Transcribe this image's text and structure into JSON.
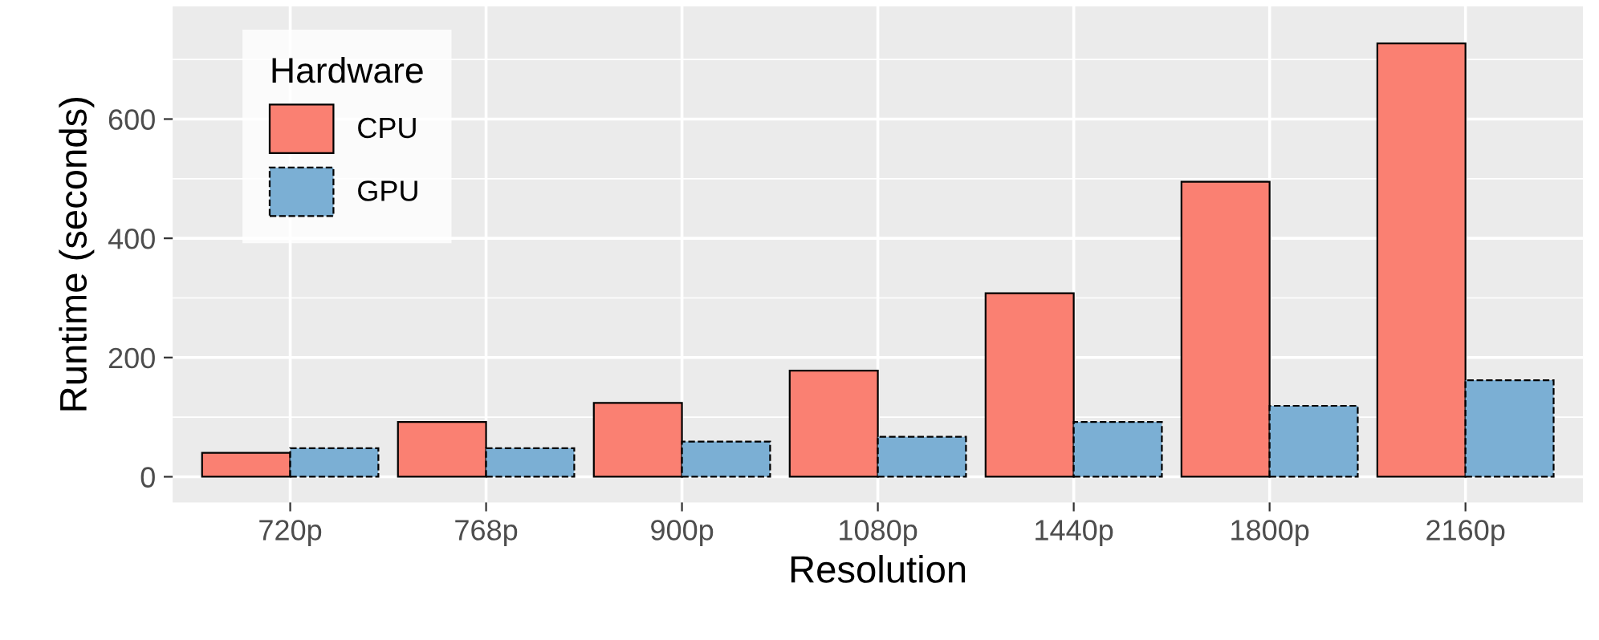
{
  "chart_data": {
    "type": "bar",
    "xlabel": "Resolution",
    "ylabel": "Runtime (seconds)",
    "legend_title": "Hardware",
    "legend": "top left",
    "grid": true,
    "categories": [
      "720p",
      "768p",
      "900p",
      "1080p",
      "1440p",
      "1800p",
      "2160p"
    ],
    "series": [
      {
        "name": "CPU",
        "color": "#fa8072",
        "line_style": "solid",
        "values": [
          40,
          92,
          124,
          178,
          308,
          495,
          727
        ]
      },
      {
        "name": "GPU",
        "color": "#7bafd4",
        "line_style": "dashed",
        "values": [
          48,
          48,
          59,
          67,
          92,
          119,
          162
        ]
      }
    ],
    "ylim": [
      -43,
      789
    ],
    "yticks": [
      0,
      200,
      400,
      600
    ]
  }
}
